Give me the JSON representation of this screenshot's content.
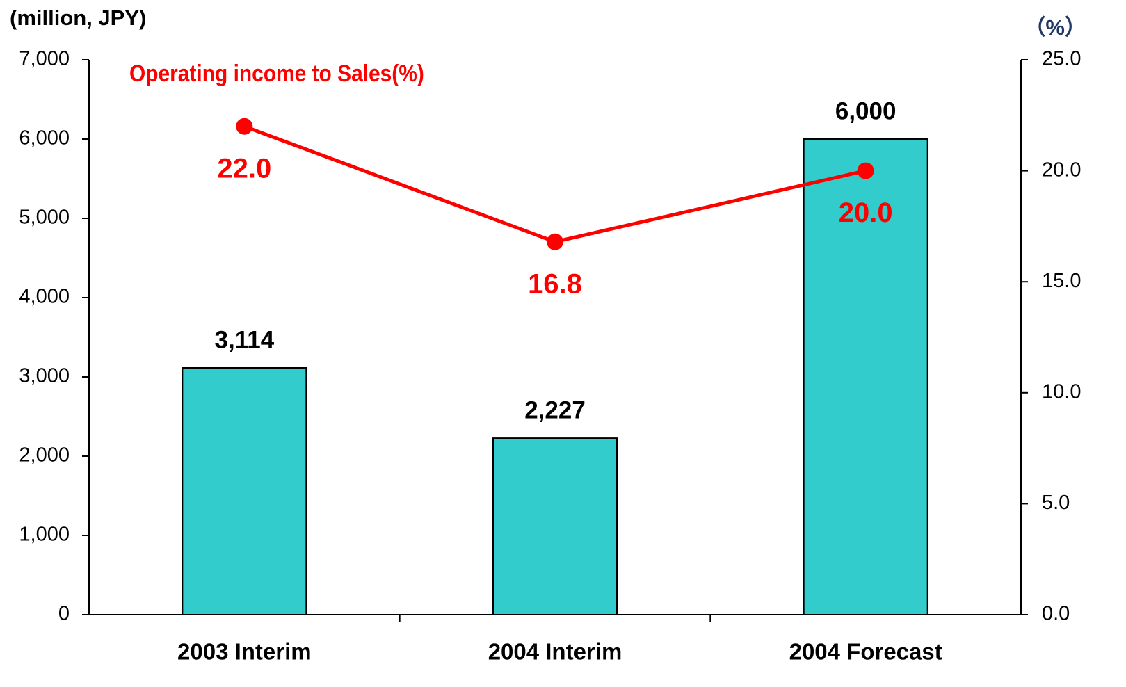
{
  "chart_data": {
    "type": "bar",
    "y_label": "(million, JPY)",
    "y2_label": "（%）",
    "categories": [
      "2003 Interim",
      "2004 Interim",
      "2004 Forecast"
    ],
    "series": [
      {
        "type": "bar",
        "color": "#33cccc",
        "values": [
          3114,
          2227,
          6000
        ],
        "value_labels": [
          "3,114",
          "2,227",
          "6,000"
        ]
      },
      {
        "type": "line",
        "name": "Operating income to Sales(%)",
        "color": "#ff0000",
        "axis": "y2",
        "values": [
          22.0,
          16.8,
          20.0
        ],
        "value_labels": [
          "22.0",
          "16.8",
          "20.0"
        ]
      }
    ],
    "ylim": [
      0,
      7000
    ],
    "yticks": [
      0,
      {
        "value": 1000,
        "label": "1,000"
      },
      {
        "value": 2000,
        "label": "2,000"
      },
      {
        "value": 3000,
        "label": "3,000"
      },
      {
        "value": 4000,
        "label": "4,000"
      },
      {
        "value": 5000,
        "label": "5,000"
      },
      {
        "value": 6000,
        "label": "6,000"
      },
      {
        "value": 7000,
        "label": "7,000"
      }
    ],
    "y2lim": [
      0,
      25
    ],
    "y2ticks": [
      {
        "value": 0,
        "label": "0.0"
      },
      {
        "value": 5,
        "label": "5.0"
      },
      {
        "value": 10,
        "label": "10.0"
      },
      {
        "value": 15,
        "label": "15.0"
      },
      {
        "value": 20,
        "label": "20.0"
      },
      {
        "value": 25,
        "label": "25.0"
      }
    ],
    "grid": false
  }
}
